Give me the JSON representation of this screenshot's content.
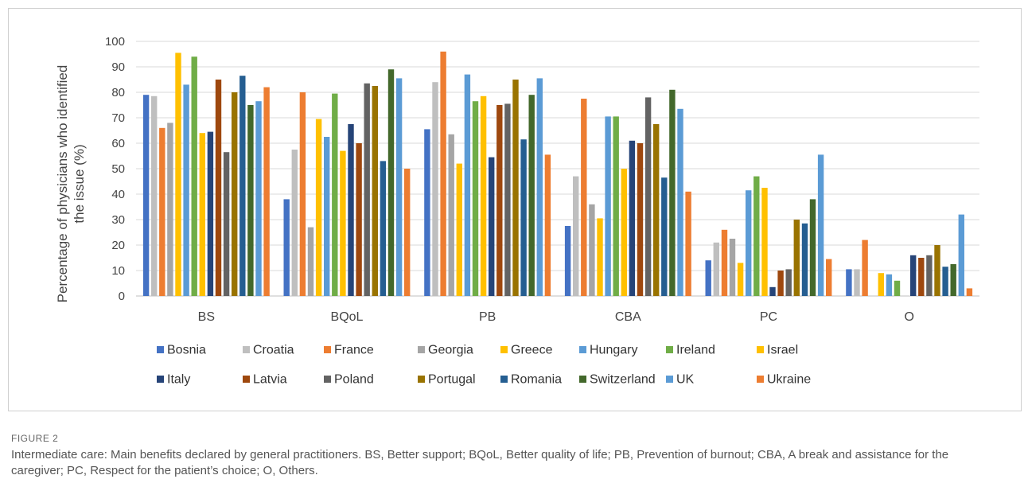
{
  "figure": {
    "label": "FIGURE 2",
    "caption": "Intermediate care: Main benefits declared by general practitioners. BS, Better support; BQoL, Better quality of life; PB, Prevention of burnout; CBA, A break and assistance for the caregiver; PC, Respect for the patient’s choice; O, Others."
  },
  "chart_data": {
    "type": "bar",
    "ylabel_line1": "Percentage of physicians who  identified",
    "ylabel_line2": "the issue (%)",
    "xlabel": "",
    "ylim": [
      0,
      100
    ],
    "yticks": [
      0,
      10,
      20,
      30,
      40,
      50,
      60,
      70,
      80,
      90,
      100
    ],
    "grid": true,
    "legend_position": "bottom",
    "categories": [
      "BS",
      "BQoL",
      "PB",
      "CBA",
      "PC",
      "O"
    ],
    "series": [
      {
        "name": "Bosnia",
        "color": "#4472C4",
        "values": [
          79,
          38,
          65.5,
          27.5,
          14,
          10.5
        ]
      },
      {
        "name": "Croatia",
        "color": "#BFBFBF",
        "values": [
          78.5,
          57.5,
          84,
          47,
          21,
          10.5
        ]
      },
      {
        "name": "France",
        "color": "#ED7D31",
        "values": [
          66,
          80,
          96,
          77.5,
          26,
          22
        ]
      },
      {
        "name": "Georgia",
        "color": "#A5A5A5",
        "values": [
          68,
          27,
          63.5,
          36,
          22.5,
          0
        ]
      },
      {
        "name": "Greece",
        "color": "#FFC000",
        "values": [
          95.5,
          69.5,
          52,
          30.5,
          13,
          9
        ]
      },
      {
        "name": "Hungary",
        "color": "#5B9BD5",
        "values": [
          83,
          62.5,
          87,
          70.5,
          41.5,
          8.5
        ]
      },
      {
        "name": "Ireland",
        "color": "#70AD47",
        "values": [
          94,
          79.5,
          76.5,
          70.5,
          47,
          6
        ]
      },
      {
        "name": "Israel",
        "color": "#FFC000",
        "values": [
          64,
          57,
          78.5,
          50,
          42.5,
          0
        ]
      },
      {
        "name": "Italy",
        "color": "#264478",
        "values": [
          64.5,
          67.5,
          54.5,
          61,
          3.5,
          16
        ]
      },
      {
        "name": "Latvia",
        "color": "#9E480E",
        "values": [
          85,
          60,
          75,
          60,
          10,
          15
        ]
      },
      {
        "name": "Poland",
        "color": "#636363",
        "values": [
          56.5,
          83.5,
          75.5,
          78,
          10.5,
          16
        ]
      },
      {
        "name": "Portugal",
        "color": "#997300",
        "values": [
          80,
          82.5,
          85,
          67.5,
          30,
          20
        ]
      },
      {
        "name": "Romania",
        "color": "#255E91",
        "values": [
          86.5,
          53,
          61.5,
          46.5,
          28.5,
          11.5
        ]
      },
      {
        "name": "Switzerland",
        "color": "#43682B",
        "values": [
          75,
          89,
          79,
          81,
          38,
          12.5
        ]
      },
      {
        "name": "UK",
        "color": "#5B9BD5",
        "values": [
          76.5,
          85.5,
          85.5,
          73.5,
          55.5,
          32
        ]
      },
      {
        "name": "Ukraine",
        "color": "#ED7D31",
        "values": [
          82,
          50,
          55.5,
          41,
          14.5,
          3
        ]
      }
    ]
  }
}
